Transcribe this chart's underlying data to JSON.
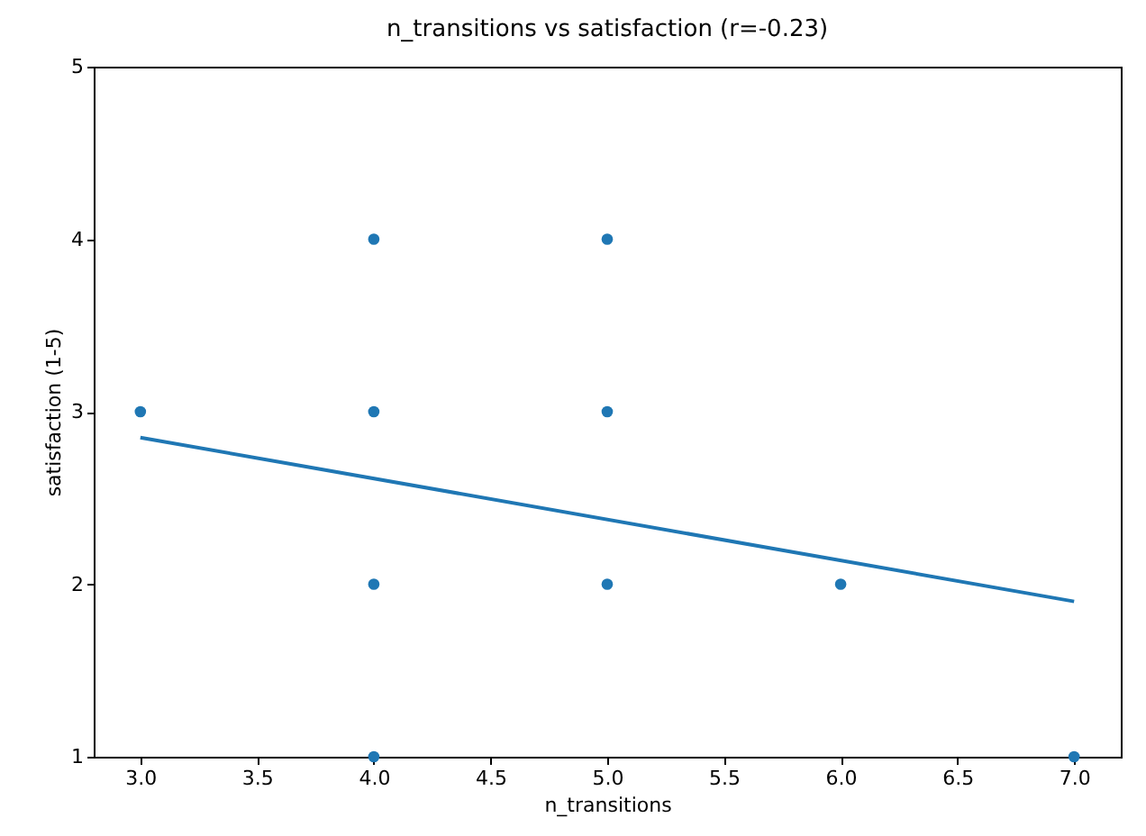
{
  "chart_data": {
    "type": "scatter",
    "title": "n_transitions vs satisfaction (r=-0.23)",
    "xlabel": "n_transitions",
    "ylabel": "satisfaction (1-5)",
    "xlim": [
      2.8,
      7.2
    ],
    "xticks": [
      {
        "value": 3,
        "label": "3.0"
      },
      {
        "value": 3.5,
        "label": "3.5"
      },
      {
        "value": 4,
        "label": "4.0"
      },
      {
        "value": 4.5,
        "label": "4.5"
      },
      {
        "value": 5,
        "label": "5.0"
      },
      {
        "value": 5.5,
        "label": "5.5"
      },
      {
        "value": 6,
        "label": "6.0"
      },
      {
        "value": 6.5,
        "label": "6.5"
      },
      {
        "value": 7,
        "label": "7.0"
      }
    ],
    "ylim": [
      1,
      5
    ],
    "yticks": [
      1,
      2,
      3,
      4,
      5
    ],
    "grid": false,
    "series": [
      {
        "color": "#1f77b4",
        "marker": "circle",
        "x": [
          3,
          4,
          4,
          4,
          4,
          5,
          5,
          5,
          6,
          7
        ],
        "values": [
          3,
          4,
          3,
          2,
          1,
          4,
          3,
          2,
          2,
          1
        ]
      },
      {
        "type": "line",
        "marker": "none",
        "color": "#1f77b4",
        "x": [
          3,
          7
        ],
        "values": [
          2.85,
          1.9
        ]
      }
    ]
  }
}
